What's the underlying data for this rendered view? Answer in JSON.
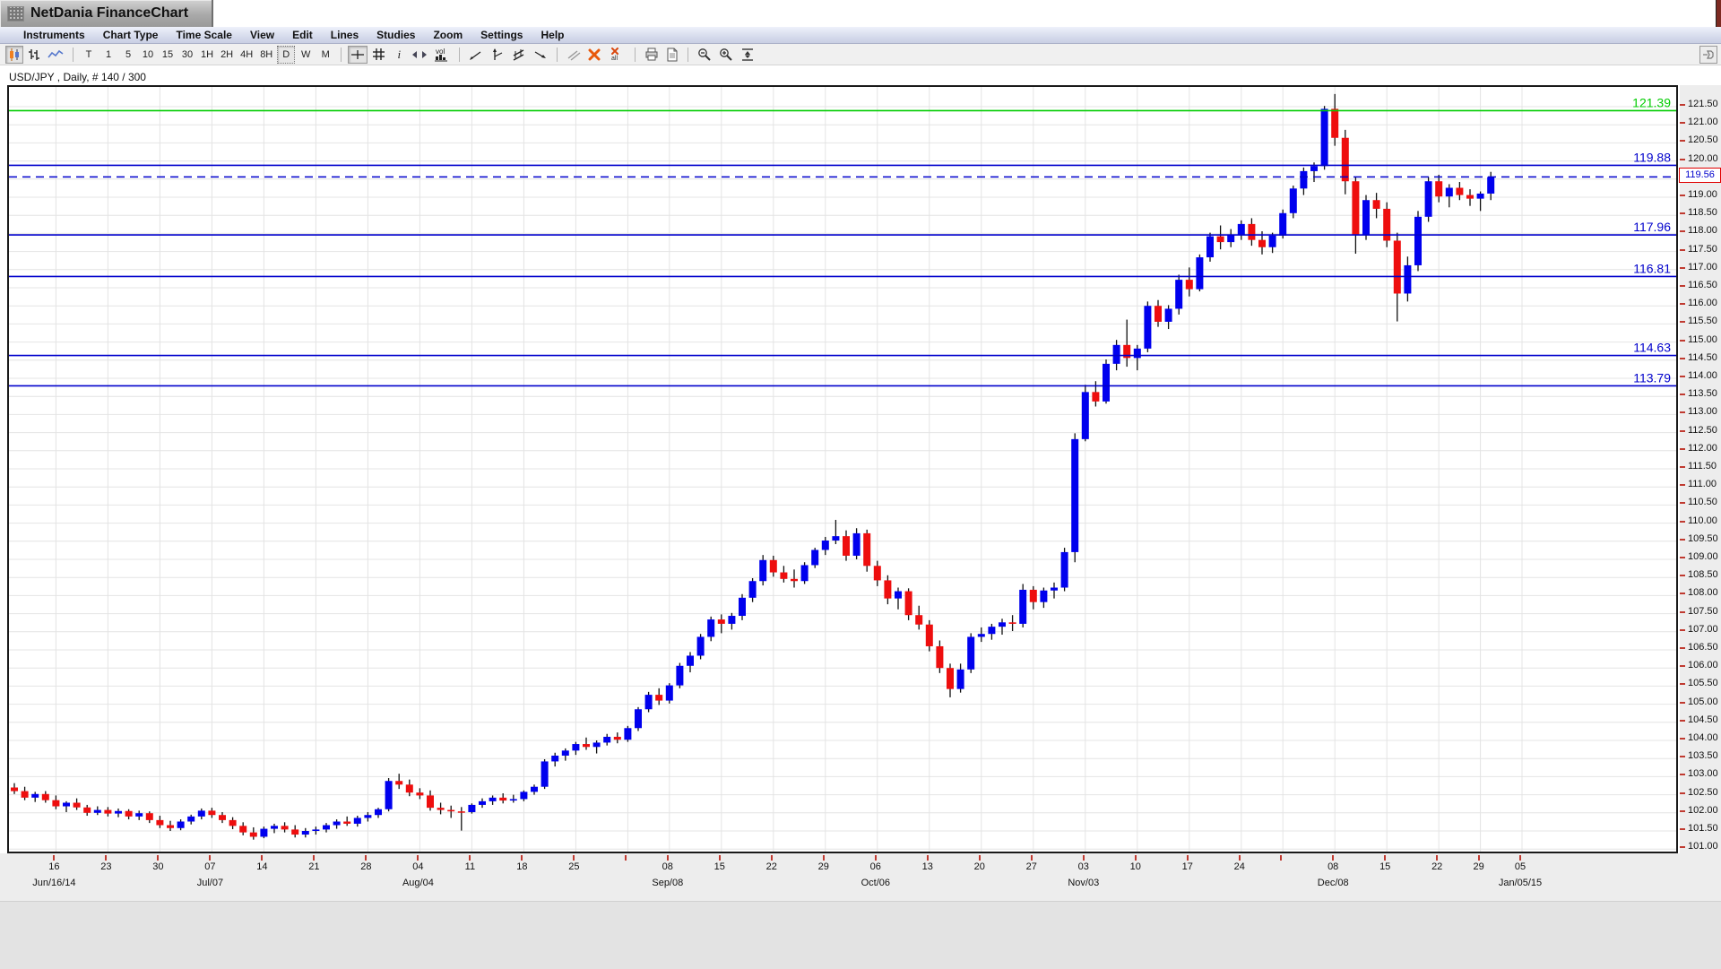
{
  "window": {
    "title": "NetDania FinanceChart"
  },
  "menu": {
    "items": [
      "Instruments",
      "Chart Type",
      "Time Scale",
      "View",
      "Edit",
      "Lines",
      "Studies",
      "Zoom",
      "Settings",
      "Help"
    ]
  },
  "toolbar": {
    "intervals": [
      {
        "label": "T",
        "selected": false
      },
      {
        "label": "1",
        "selected": false
      },
      {
        "label": "5",
        "selected": false
      },
      {
        "label": "10",
        "selected": false
      },
      {
        "label": "15",
        "selected": false
      },
      {
        "label": "30",
        "selected": false
      },
      {
        "label": "1H",
        "selected": false
      },
      {
        "label": "2H",
        "selected": false
      },
      {
        "label": "4H",
        "selected": false
      },
      {
        "label": "8H",
        "selected": false
      },
      {
        "label": "D",
        "selected": true
      },
      {
        "label": "W",
        "selected": false
      },
      {
        "label": "M",
        "selected": false
      }
    ],
    "info_label": "i",
    "vol_label": "vol",
    "all_label": "all"
  },
  "chart": {
    "instrument_label": "USD/JPY , Daily, # 140 / 300"
  },
  "colors": {
    "up_candle": "#0000ee",
    "down_candle": "#ee0e0e",
    "wick": "#111111",
    "grid": "#e4e4e4",
    "level_blue": "#0000cc",
    "level_green": "#00cc00",
    "current_dash": "#0000cc",
    "axis_tick": "#c03a30",
    "current_box_border": "#e00000",
    "current_box_text": "#0000cc"
  },
  "chart_data": {
    "type": "candlestick",
    "symbol": "USD/JPY",
    "timeframe": "Daily",
    "bars_loaded_label": "# 140 / 300",
    "y_axis": {
      "min": 101.0,
      "max": 121.5,
      "step": 0.5,
      "label_decimals": 2
    },
    "current_price": {
      "value": 119.56,
      "label": "119.56"
    },
    "horizontal_lines": [
      {
        "price": 121.39,
        "label": "121.39",
        "color": "#00cc00",
        "style": "solid"
      },
      {
        "price": 119.88,
        "label": "119.88",
        "color": "#0000cc",
        "style": "solid"
      },
      {
        "price": 117.96,
        "label": "117.96",
        "color": "#0000cc",
        "style": "solid"
      },
      {
        "price": 116.81,
        "label": "116.81",
        "color": "#0000cc",
        "style": "solid"
      },
      {
        "price": 114.63,
        "label": "114.63",
        "color": "#0000cc",
        "style": "solid"
      },
      {
        "price": 113.79,
        "label": "113.79",
        "color": "#0000cc",
        "style": "solid"
      },
      {
        "price": 119.56,
        "label": "",
        "color": "#0000cc",
        "style": "dashed"
      }
    ],
    "x_axis": {
      "week_ticks": [
        {
          "label": "16",
          "bar": 4,
          "month": "Jun/16/14"
        },
        {
          "label": "23",
          "bar": 9
        },
        {
          "label": "30",
          "bar": 14
        },
        {
          "label": "07",
          "bar": 19,
          "month": "Jul/07"
        },
        {
          "label": "14",
          "bar": 24
        },
        {
          "label": "21",
          "bar": 29
        },
        {
          "label": "28",
          "bar": 34
        },
        {
          "label": "04",
          "bar": 39,
          "month": "Aug/04"
        },
        {
          "label": "11",
          "bar": 44
        },
        {
          "label": "18",
          "bar": 49
        },
        {
          "label": "25",
          "bar": 54
        },
        {
          "label": "",
          "bar": 59
        },
        {
          "label": "08",
          "bar": 63,
          "month": "Sep/08"
        },
        {
          "label": "15",
          "bar": 68
        },
        {
          "label": "22",
          "bar": 73
        },
        {
          "label": "29",
          "bar": 78
        },
        {
          "label": "06",
          "bar": 83,
          "month": "Oct/06"
        },
        {
          "label": "13",
          "bar": 88
        },
        {
          "label": "20",
          "bar": 93
        },
        {
          "label": "27",
          "bar": 98
        },
        {
          "label": "03",
          "bar": 103,
          "month": "Nov/03"
        },
        {
          "label": "10",
          "bar": 108
        },
        {
          "label": "17",
          "bar": 113
        },
        {
          "label": "24",
          "bar": 118
        },
        {
          "label": "",
          "bar": 122
        },
        {
          "label": "08",
          "bar": 127,
          "month": "Dec/08"
        },
        {
          "label": "15",
          "bar": 132
        },
        {
          "label": "22",
          "bar": 137
        },
        {
          "label": "29",
          "bar": 141
        },
        {
          "label": "05",
          "bar": 145,
          "month": "Jan/05/15"
        }
      ]
    },
    "candles": [
      [
        102.7,
        102.82,
        102.52,
        102.6
      ],
      [
        102.6,
        102.72,
        102.35,
        102.42
      ],
      [
        102.42,
        102.58,
        102.3,
        102.52
      ],
      [
        102.52,
        102.6,
        102.28,
        102.35
      ],
      [
        102.35,
        102.48,
        102.1,
        102.18
      ],
      [
        102.18,
        102.32,
        102.02,
        102.28
      ],
      [
        102.28,
        102.4,
        102.08,
        102.15
      ],
      [
        102.15,
        102.22,
        101.92,
        102.0
      ],
      [
        102.0,
        102.18,
        101.94,
        102.08
      ],
      [
        102.08,
        102.16,
        101.9,
        101.98
      ],
      [
        101.98,
        102.12,
        101.88,
        102.05
      ],
      [
        102.05,
        102.1,
        101.82,
        101.9
      ],
      [
        101.9,
        102.06,
        101.8,
        101.99
      ],
      [
        101.99,
        102.04,
        101.72,
        101.8
      ],
      [
        101.8,
        101.92,
        101.58,
        101.66
      ],
      [
        101.66,
        101.78,
        101.5,
        101.58
      ],
      [
        101.58,
        101.82,
        101.52,
        101.76
      ],
      [
        101.76,
        101.95,
        101.68,
        101.9
      ],
      [
        101.9,
        102.12,
        101.82,
        102.06
      ],
      [
        102.06,
        102.14,
        101.86,
        101.94
      ],
      [
        101.94,
        102.02,
        101.72,
        101.8
      ],
      [
        101.8,
        101.88,
        101.55,
        101.64
      ],
      [
        101.64,
        101.74,
        101.38,
        101.46
      ],
      [
        101.46,
        101.6,
        101.26,
        101.34
      ],
      [
        101.34,
        101.62,
        101.3,
        101.56
      ],
      [
        101.56,
        101.7,
        101.44,
        101.64
      ],
      [
        101.64,
        101.74,
        101.46,
        101.54
      ],
      [
        101.54,
        101.66,
        101.32,
        101.4
      ],
      [
        101.4,
        101.58,
        101.32,
        101.5
      ],
      [
        101.5,
        101.62,
        101.4,
        101.54
      ],
      [
        101.54,
        101.72,
        101.46,
        101.66
      ],
      [
        101.66,
        101.82,
        101.56,
        101.76
      ],
      [
        101.76,
        101.9,
        101.64,
        101.7
      ],
      [
        101.7,
        101.92,
        101.62,
        101.86
      ],
      [
        101.86,
        102.02,
        101.76,
        101.94
      ],
      [
        101.94,
        102.14,
        101.86,
        102.1
      ],
      [
        102.1,
        102.96,
        102.04,
        102.88
      ],
      [
        102.88,
        103.08,
        102.66,
        102.78
      ],
      [
        102.78,
        102.92,
        102.46,
        102.56
      ],
      [
        102.56,
        102.68,
        102.38,
        102.48
      ],
      [
        102.48,
        102.62,
        102.06,
        102.14
      ],
      [
        102.14,
        102.28,
        101.96,
        102.08
      ],
      [
        102.08,
        102.2,
        101.86,
        102.04
      ],
      [
        102.04,
        102.16,
        101.51,
        102.02
      ],
      [
        102.02,
        102.26,
        101.98,
        102.22
      ],
      [
        102.22,
        102.4,
        102.14,
        102.32
      ],
      [
        102.32,
        102.48,
        102.22,
        102.42
      ],
      [
        102.42,
        102.54,
        102.26,
        102.34
      ],
      [
        102.34,
        102.5,
        102.28,
        102.38
      ],
      [
        102.38,
        102.62,
        102.32,
        102.58
      ],
      [
        102.58,
        102.78,
        102.5,
        102.72
      ],
      [
        102.72,
        103.48,
        102.66,
        103.42
      ],
      [
        103.42,
        103.66,
        103.28,
        103.58
      ],
      [
        103.58,
        103.78,
        103.44,
        103.72
      ],
      [
        103.72,
        103.96,
        103.6,
        103.9
      ],
      [
        103.9,
        104.08,
        103.74,
        103.82
      ],
      [
        103.82,
        104.0,
        103.64,
        103.94
      ],
      [
        103.94,
        104.18,
        103.86,
        104.1
      ],
      [
        104.1,
        104.22,
        103.92,
        104.02
      ],
      [
        104.02,
        104.4,
        103.96,
        104.34
      ],
      [
        104.34,
        104.92,
        104.26,
        104.86
      ],
      [
        104.86,
        105.34,
        104.78,
        105.26
      ],
      [
        105.26,
        105.44,
        104.98,
        105.1
      ],
      [
        105.1,
        105.58,
        105.02,
        105.52
      ],
      [
        105.52,
        106.14,
        105.44,
        106.06
      ],
      [
        106.06,
        106.44,
        105.88,
        106.34
      ],
      [
        106.34,
        106.94,
        106.24,
        106.86
      ],
      [
        106.86,
        107.42,
        106.74,
        107.34
      ],
      [
        107.34,
        107.48,
        106.96,
        107.22
      ],
      [
        107.22,
        107.52,
        107.06,
        107.44
      ],
      [
        107.44,
        108.04,
        107.32,
        107.94
      ],
      [
        107.94,
        108.48,
        107.82,
        108.4
      ],
      [
        108.4,
        109.12,
        108.28,
        108.98
      ],
      [
        108.98,
        109.1,
        108.52,
        108.64
      ],
      [
        108.64,
        108.82,
        108.36,
        108.46
      ],
      [
        108.46,
        108.72,
        108.22,
        108.4
      ],
      [
        108.4,
        108.92,
        108.32,
        108.84
      ],
      [
        108.84,
        109.32,
        108.76,
        109.26
      ],
      [
        109.26,
        109.62,
        109.12,
        109.52
      ],
      [
        109.52,
        110.09,
        109.42,
        109.64
      ],
      [
        109.64,
        109.8,
        108.96,
        109.1
      ],
      [
        109.1,
        109.86,
        109.0,
        109.72
      ],
      [
        109.72,
        109.82,
        108.66,
        108.82
      ],
      [
        108.82,
        108.96,
        108.26,
        108.42
      ],
      [
        108.42,
        108.56,
        107.76,
        107.92
      ],
      [
        107.92,
        108.22,
        107.62,
        108.12
      ],
      [
        108.12,
        108.2,
        107.32,
        107.46
      ],
      [
        107.46,
        107.72,
        107.06,
        107.2
      ],
      [
        107.2,
        107.32,
        106.46,
        106.6
      ],
      [
        106.6,
        106.76,
        105.86,
        106.0
      ],
      [
        106.0,
        106.12,
        105.19,
        105.42
      ],
      [
        105.42,
        106.12,
        105.32,
        105.96
      ],
      [
        105.96,
        106.96,
        105.86,
        106.86
      ],
      [
        106.86,
        107.12,
        106.72,
        106.94
      ],
      [
        106.94,
        107.22,
        106.78,
        107.14
      ],
      [
        107.14,
        107.36,
        106.92,
        107.26
      ],
      [
        107.26,
        107.46,
        107.02,
        107.22
      ],
      [
        107.22,
        108.32,
        107.12,
        108.16
      ],
      [
        108.16,
        108.26,
        107.62,
        107.82
      ],
      [
        107.82,
        108.22,
        107.66,
        108.14
      ],
      [
        108.14,
        108.36,
        107.92,
        108.22
      ],
      [
        108.22,
        109.32,
        108.12,
        109.2
      ],
      [
        109.2,
        112.48,
        108.92,
        112.32
      ],
      [
        112.32,
        113.82,
        112.26,
        113.62
      ],
      [
        113.62,
        113.92,
        113.22,
        113.36
      ],
      [
        113.36,
        114.52,
        113.3,
        114.4
      ],
      [
        114.4,
        115.06,
        114.22,
        114.92
      ],
      [
        114.92,
        115.62,
        114.32,
        114.56
      ],
      [
        114.56,
        114.92,
        114.22,
        114.82
      ],
      [
        114.82,
        116.12,
        114.72,
        116.0
      ],
      [
        116.0,
        116.16,
        115.42,
        115.56
      ],
      [
        115.56,
        116.02,
        115.36,
        115.92
      ],
      [
        115.92,
        116.86,
        115.76,
        116.72
      ],
      [
        116.72,
        117.06,
        116.26,
        116.46
      ],
      [
        116.46,
        117.42,
        116.4,
        117.34
      ],
      [
        117.34,
        118.02,
        117.22,
        117.92
      ],
      [
        117.92,
        118.22,
        117.56,
        117.76
      ],
      [
        117.76,
        118.12,
        117.62,
        117.96
      ],
      [
        117.96,
        118.36,
        117.82,
        118.26
      ],
      [
        118.26,
        118.42,
        117.66,
        117.82
      ],
      [
        117.82,
        118.06,
        117.42,
        117.62
      ],
      [
        117.62,
        118.02,
        117.46,
        117.94
      ],
      [
        117.94,
        118.66,
        117.86,
        118.56
      ],
      [
        118.56,
        119.32,
        118.42,
        119.24
      ],
      [
        119.24,
        119.82,
        119.06,
        119.72
      ],
      [
        119.72,
        119.96,
        119.42,
        119.86
      ],
      [
        119.86,
        121.52,
        119.76,
        121.44
      ],
      [
        121.44,
        121.85,
        120.42,
        120.64
      ],
      [
        120.64,
        120.86,
        119.08,
        119.44
      ],
      [
        119.44,
        119.56,
        117.44,
        117.96
      ],
      [
        117.96,
        119.06,
        117.82,
        118.92
      ],
      [
        118.92,
        119.12,
        118.42,
        118.68
      ],
      [
        118.68,
        118.86,
        117.62,
        117.8
      ],
      [
        117.8,
        118.02,
        115.57,
        116.34
      ],
      [
        116.34,
        117.36,
        116.12,
        117.12
      ],
      [
        117.12,
        118.62,
        116.96,
        118.46
      ],
      [
        118.46,
        119.56,
        118.32,
        119.44
      ],
      [
        119.44,
        119.62,
        118.86,
        119.02
      ],
      [
        119.02,
        119.36,
        118.72,
        119.26
      ],
      [
        119.26,
        119.42,
        118.92,
        119.06
      ],
      [
        119.06,
        119.22,
        118.76,
        118.96
      ],
      [
        118.96,
        119.16,
        118.62,
        119.1
      ],
      [
        119.1,
        119.7,
        118.92,
        119.56
      ]
    ]
  }
}
